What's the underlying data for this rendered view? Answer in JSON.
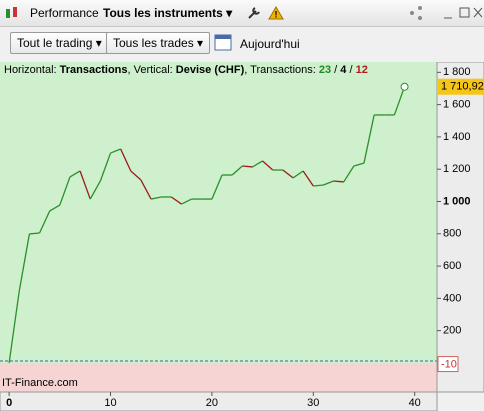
{
  "toolbar": {
    "tab1": "Performance",
    "tab2": "Tous les instruments"
  },
  "filters": {
    "trading": "Tout le trading",
    "trades": "Tous les trades",
    "date": "Aujourd'hui"
  },
  "chart_data": {
    "type": "line",
    "caption": [
      "Horizontal: ",
      "Transactions",
      ", Vertical: ",
      "Devise (CHF)",
      ", Transactions: ",
      "23",
      " / ",
      "4",
      " / ",
      "12"
    ],
    "watermark": "IT-Finance.com",
    "x": [
      0,
      1,
      2,
      3,
      4,
      5,
      6,
      7,
      8,
      9,
      10,
      11,
      12,
      13,
      14,
      15,
      16,
      17,
      18,
      19,
      20,
      21,
      22,
      23,
      24,
      25,
      26,
      27,
      28,
      29,
      30,
      31,
      32,
      33,
      34,
      35,
      36,
      37,
      38,
      39
    ],
    "values": [
      0,
      446,
      799,
      805,
      941,
      978,
      1152,
      1189,
      1015,
      1127,
      1300,
      1325,
      1189,
      1133,
      1015,
      1028,
      1028,
      984,
      1015,
      1015,
      1015,
      1164,
      1164,
      1220,
      1214,
      1251,
      1195,
      1195,
      1146,
      1189,
      1096,
      1102,
      1127,
      1121,
      1220,
      1238,
      1536,
      1536,
      1536,
      1710.92
    ],
    "value_labels": [
      null,
      null,
      null,
      null,
      null,
      null,
      null,
      null,
      null,
      null,
      null,
      null,
      null,
      null,
      null,
      null,
      null,
      null,
      null,
      null,
      null,
      null,
      null,
      null,
      null,
      null,
      null,
      null,
      null,
      null,
      null,
      null,
      null,
      null,
      null,
      null,
      null,
      null,
      null,
      "1 710,92"
    ],
    "up_color": "#2a8f2a",
    "down_color": "#9b1b1b",
    "xlim": [
      -0.9,
      42.2
    ],
    "xticks": [
      0,
      10,
      20,
      30,
      40
    ],
    "ylim": [
      -180,
      1864
    ],
    "yticks": [
      200,
      400,
      600,
      800,
      {
        "value": 1000,
        "label": "1 000"
      },
      {
        "value": 1200,
        "label": "1 200"
      },
      {
        "value": 1400,
        "label": "1 400"
      },
      {
        "value": 1600,
        "label": "1 600"
      },
      {
        "value": 1800,
        "label": "1 800"
      }
    ],
    "marker": {
      "value": -10,
      "label": "-10"
    }
  }
}
